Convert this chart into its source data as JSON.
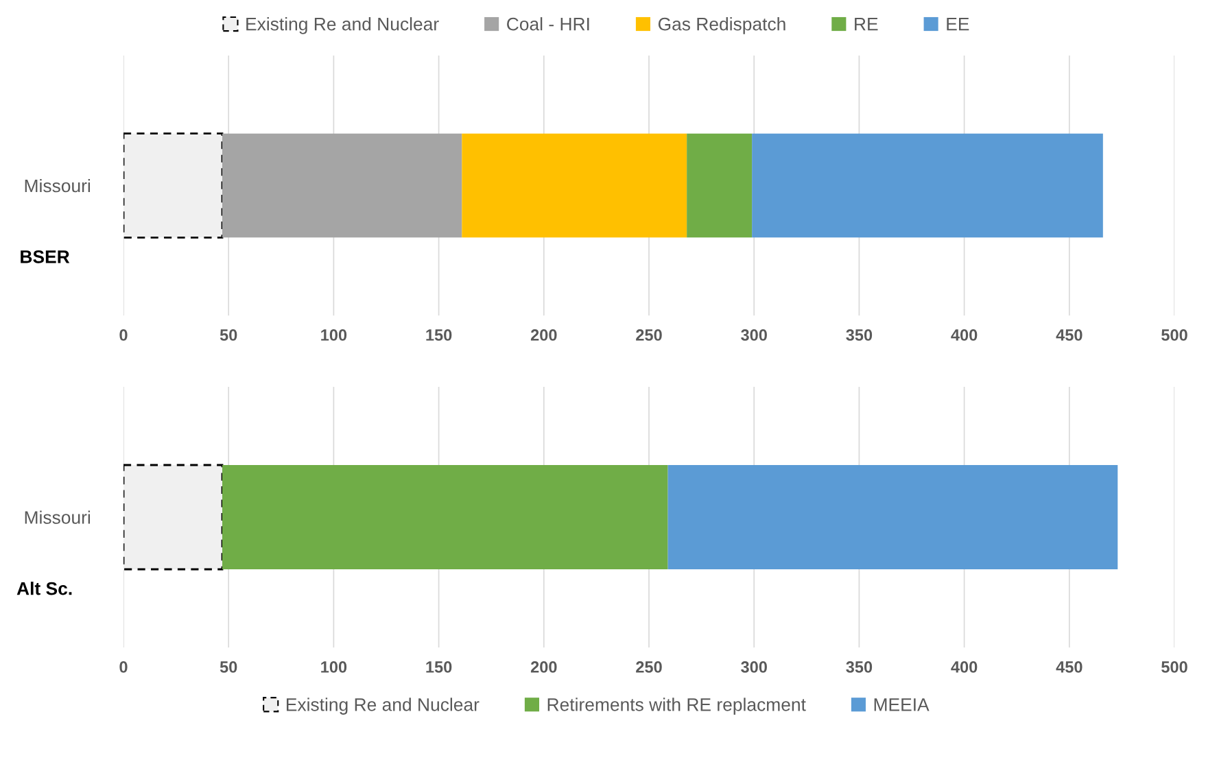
{
  "chart_data": [
    {
      "type": "bar",
      "orientation": "horizontal",
      "stacked": true,
      "title": "BSER",
      "categories": [
        "Missouri"
      ],
      "series": [
        {
          "name": "Existing Re and Nuclear",
          "color": "#f0f0f0",
          "line_style": "dashed",
          "values": [
            47
          ]
        },
        {
          "name": "Coal - HRI",
          "color": "#a5a5a5",
          "values": [
            114
          ]
        },
        {
          "name": "Gas Redispatch",
          "color": "#ffc000",
          "values": [
            107
          ]
        },
        {
          "name": "RE",
          "color": "#70ad47",
          "values": [
            31
          ]
        },
        {
          "name": "EE",
          "color": "#5b9bd5",
          "values": [
            167
          ]
        }
      ],
      "xlim": [
        0,
        500
      ],
      "xticks": [
        0,
        50,
        100,
        150,
        200,
        250,
        300,
        350,
        400,
        450,
        500
      ],
      "grid": "x",
      "legend": "top"
    },
    {
      "type": "bar",
      "orientation": "horizontal",
      "stacked": true,
      "title": "Alt Sc.",
      "categories": [
        "Missouri"
      ],
      "series": [
        {
          "name": "Existing Re and Nuclear",
          "color": "#f0f0f0",
          "line_style": "dashed",
          "values": [
            47
          ]
        },
        {
          "name": "Retirements with RE replacment",
          "color": "#70ad47",
          "values": [
            212
          ]
        },
        {
          "name": "MEEIA",
          "color": "#5b9bd5",
          "values": [
            214
          ]
        }
      ],
      "xlim": [
        0,
        500
      ],
      "xticks": [
        0,
        50,
        100,
        150,
        200,
        250,
        300,
        350,
        400,
        450,
        500
      ],
      "grid": "x",
      "legend": "bottom"
    }
  ]
}
